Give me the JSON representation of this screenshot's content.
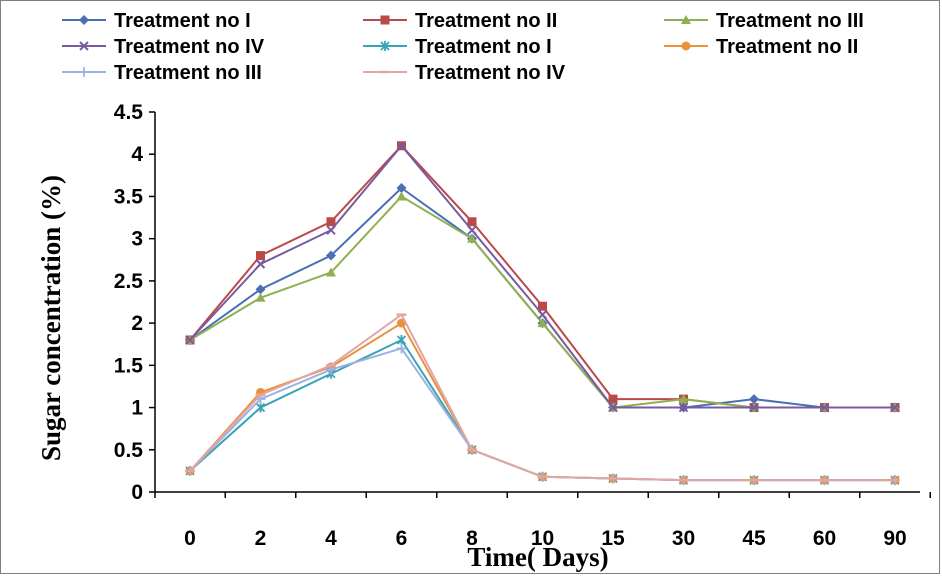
{
  "chart_data": {
    "type": "line",
    "title": "",
    "xlabel": "Time( Days)",
    "ylabel": "Sugar concentration (%)",
    "categories": [
      "0",
      "2",
      "4",
      "6",
      "8",
      "10",
      "15",
      "30",
      "45",
      "60",
      "90"
    ],
    "ylim": [
      0,
      4.5
    ],
    "yticks": [
      "0",
      "0.5",
      "1",
      "1.5",
      "2",
      "2.5",
      "3",
      "3.5",
      "4",
      "4.5"
    ],
    "grid": false,
    "legend_position": "top",
    "series": [
      {
        "name": "Treatment no I",
        "color": "#4a6fb5",
        "marker": "diamond",
        "values": [
          1.8,
          2.4,
          2.8,
          3.6,
          3.0,
          2.0,
          1.0,
          1.0,
          1.1,
          1.0,
          1.0
        ]
      },
      {
        "name": "Treatment no II",
        "color": "#b94a48",
        "marker": "square",
        "values": [
          1.8,
          2.8,
          3.2,
          4.1,
          3.2,
          2.2,
          1.1,
          1.1,
          1.0,
          1.0,
          1.0
        ]
      },
      {
        "name": "Treatment no III",
        "color": "#8fb050",
        "marker": "triangle",
        "values": [
          1.8,
          2.3,
          2.6,
          3.5,
          3.0,
          2.0,
          1.0,
          1.1,
          1.0,
          1.0,
          1.0
        ]
      },
      {
        "name": "Treatment no IV",
        "color": "#7a5a9e",
        "marker": "x",
        "values": [
          1.8,
          2.7,
          3.1,
          4.1,
          3.1,
          2.1,
          1.0,
          1.0,
          1.0,
          1.0,
          1.0
        ]
      },
      {
        "name": "Treatment no I",
        "color": "#3aa3b8",
        "marker": "star",
        "values": [
          0.25,
          1.0,
          1.4,
          1.8,
          0.5,
          0.18,
          0.16,
          0.14,
          0.14,
          0.14,
          0.14
        ]
      },
      {
        "name": "Treatment no II",
        "color": "#e8923a",
        "marker": "circle",
        "values": [
          0.25,
          1.18,
          1.48,
          2.0,
          0.5,
          0.18,
          0.16,
          0.14,
          0.14,
          0.14,
          0.14
        ]
      },
      {
        "name": "Treatment no III",
        "color": "#9bb3e0",
        "marker": "plus",
        "values": [
          0.25,
          1.1,
          1.45,
          1.7,
          0.5,
          0.18,
          0.16,
          0.14,
          0.14,
          0.14,
          0.14
        ]
      },
      {
        "name": "Treatment no IV",
        "color": "#e0a6a8",
        "marker": "dash",
        "values": [
          0.25,
          1.15,
          1.5,
          2.1,
          0.5,
          0.18,
          0.16,
          0.14,
          0.14,
          0.14,
          0.14
        ]
      }
    ]
  }
}
